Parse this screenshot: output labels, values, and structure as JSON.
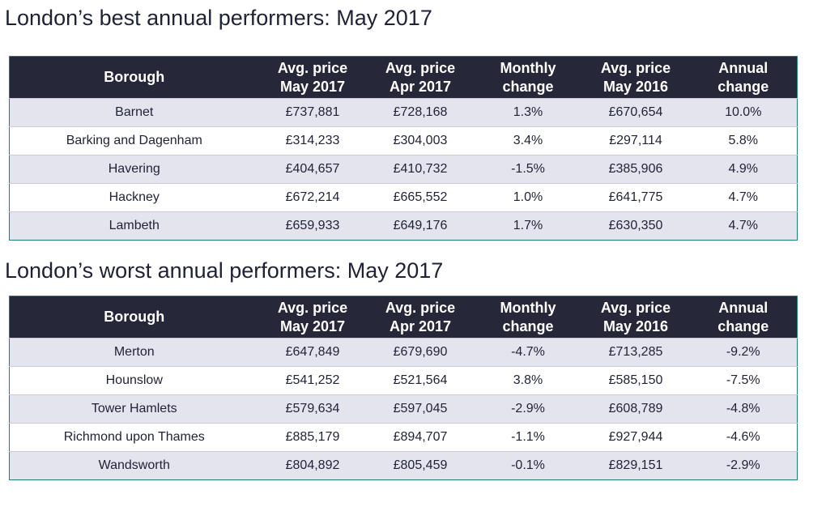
{
  "headers": {
    "borough": "Borough",
    "avg_may2017": [
      "Avg. price",
      "May 2017"
    ],
    "avg_apr2017": [
      "Avg. price",
      "Apr 2017"
    ],
    "monthly": [
      "Monthly",
      "change"
    ],
    "avg_may2016": [
      "Avg. price",
      "May 2016"
    ],
    "annual": [
      "Annual",
      "change"
    ]
  },
  "best": {
    "title": "London’s best annual performers: May 2017",
    "rows": [
      [
        "Barnet",
        "£737,881",
        "£728,168",
        "1.3%",
        "£670,654",
        "10.0%"
      ],
      [
        "Barking and Dagenham",
        "£314,233",
        "£304,003",
        "3.4%",
        "£297,114",
        "5.8%"
      ],
      [
        "Havering",
        "£404,657",
        "£410,732",
        "-1.5%",
        "£385,906",
        "4.9%"
      ],
      [
        "Hackney",
        "£672,214",
        "£665,552",
        "1.0%",
        "£641,775",
        "4.7%"
      ],
      [
        "Lambeth",
        "£659,933",
        "£649,176",
        "1.7%",
        "£630,350",
        "4.7%"
      ]
    ]
  },
  "worst": {
    "title": "London’s worst annual performers: May 2017",
    "rows": [
      [
        "Merton",
        "£647,849",
        "£679,690",
        "-4.7%",
        "£713,285",
        "-9.2%"
      ],
      [
        "Hounslow",
        "£541,252",
        "£521,564",
        "3.8%",
        "£585,150",
        "-7.5%"
      ],
      [
        "Tower Hamlets",
        "£579,634",
        "£597,045",
        "-2.9%",
        "£608,789",
        "-4.8%"
      ],
      [
        "Richmond upon Thames",
        "£885,179",
        "£894,707",
        "-1.1%",
        "£927,944",
        "-4.6%"
      ],
      [
        "Wandsworth",
        "£804,892",
        "£805,459",
        "-0.1%",
        "£829,151",
        "-2.9%"
      ]
    ]
  },
  "colors": {
    "header_bg": "#262839",
    "header_text": "#ffffff",
    "row_shade": "#e3e4ee",
    "row_plain": "#ffffff",
    "table_border": "#1e7d74",
    "text": "#1f2235"
  },
  "chart_data": [
    {
      "type": "table",
      "title": "London’s best annual performers: May 2017",
      "columns": [
        "Borough",
        "Avg. price May 2017",
        "Avg. price Apr 2017",
        "Monthly change",
        "Avg. price May 2016",
        "Annual change"
      ],
      "rows": [
        [
          "Barnet",
          737881,
          728168,
          1.3,
          670654,
          10.0
        ],
        [
          "Barking and Dagenham",
          314233,
          304003,
          3.4,
          297114,
          5.8
        ],
        [
          "Havering",
          404657,
          410732,
          -1.5,
          385906,
          4.9
        ],
        [
          "Hackney",
          672214,
          665552,
          1.0,
          641775,
          4.7
        ],
        [
          "Lambeth",
          659933,
          649176,
          1.7,
          630350,
          4.7
        ]
      ]
    },
    {
      "type": "table",
      "title": "London’s worst annual performers: May 2017",
      "columns": [
        "Borough",
        "Avg. price May 2017",
        "Avg. price Apr 2017",
        "Monthly change",
        "Avg. price May 2016",
        "Annual change"
      ],
      "rows": [
        [
          "Merton",
          647849,
          679690,
          -4.7,
          713285,
          -9.2
        ],
        [
          "Hounslow",
          541252,
          521564,
          3.8,
          585150,
          -7.5
        ],
        [
          "Tower Hamlets",
          579634,
          597045,
          -2.9,
          608789,
          -4.8
        ],
        [
          "Richmond upon Thames",
          885179,
          894707,
          -1.1,
          927944,
          -4.6
        ],
        [
          "Wandsworth",
          804892,
          805459,
          -0.1,
          829151,
          -2.9
        ]
      ]
    }
  ]
}
